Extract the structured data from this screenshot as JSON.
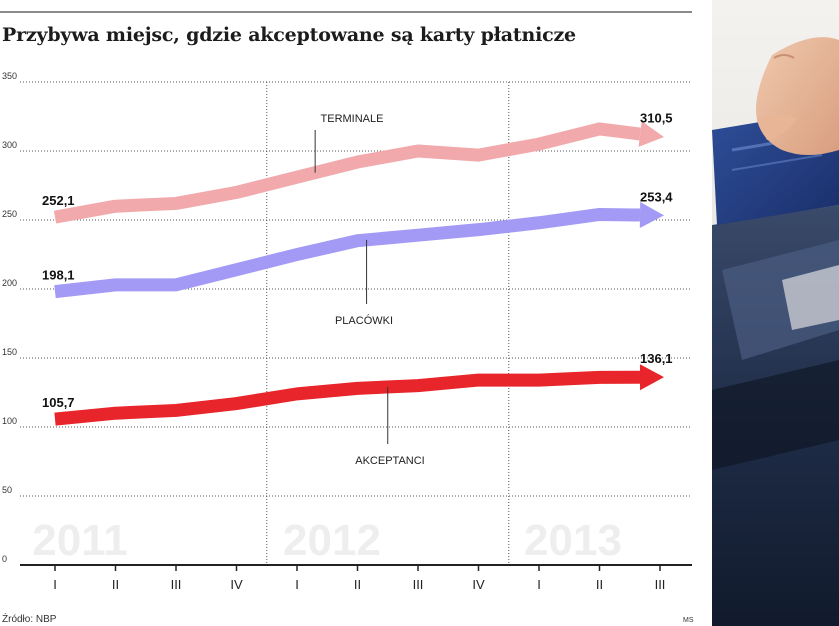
{
  "chart_data": {
    "type": "line",
    "title": "Przybywa miejsc, gdzie akceptowane są karty płatnicze",
    "source": "Źródło: NBP",
    "author": "MS",
    "ylim": [
      0,
      350
    ],
    "yticks": [
      "0",
      "50",
      "100",
      "150",
      "200",
      "250",
      "300",
      "350"
    ],
    "categories": [
      "I",
      "II",
      "III",
      "IV",
      "I",
      "II",
      "III",
      "IV",
      "I",
      "II",
      "III"
    ],
    "years": [
      "2011",
      "2012",
      "2013"
    ],
    "series": [
      {
        "name": "TERMINALE",
        "color": "#f2a9ab",
        "values": [
          252.1,
          260,
          262,
          270,
          281,
          292,
          300,
          297,
          305,
          316,
          310.5
        ],
        "start_label": "252,1",
        "end_label": "310,5"
      },
      {
        "name": "PLACÓWKI",
        "color": "#a39af6",
        "values": [
          198.1,
          203,
          203,
          214,
          225,
          235,
          239,
          243,
          248,
          254,
          253.4
        ],
        "start_label": "198,1",
        "end_label": "253,4"
      },
      {
        "name": "AKCEPTANCI",
        "color": "#e8252a",
        "values": [
          105.7,
          110,
          112,
          117,
          124,
          128,
          130,
          134,
          134,
          136,
          136.1
        ],
        "start_label": "105,7",
        "end_label": "136,1"
      }
    ]
  },
  "photo": {
    "description_icon": "card-payment-terminal-photo"
  }
}
